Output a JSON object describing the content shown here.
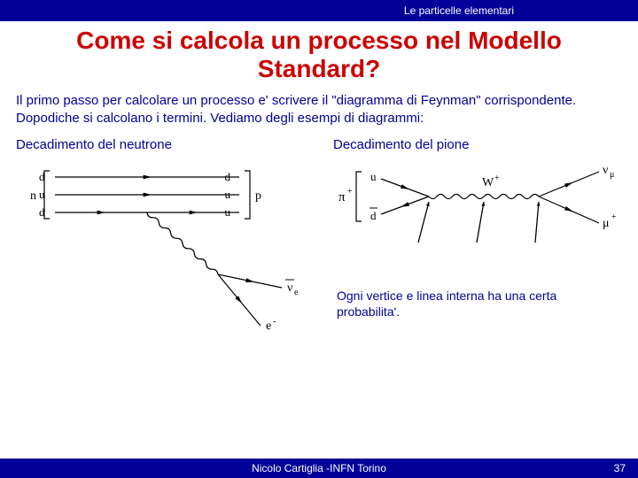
{
  "header": {
    "topic": "Le particelle elementari"
  },
  "title": "Come si calcola un processo nel Modello Standard?",
  "intro": "Il primo passo per calcolare un processo e' scrivere il \"diagramma di Feynman\" corrispondente. Dopodiche si calcolano i termini. Vediamo degli esempi di diagrammi:",
  "left": {
    "title": "Decadimento del neutrone",
    "diagram": {
      "type": "feynman",
      "left_bracket_label": "n",
      "right_bracket_label": "p",
      "in_quarks": [
        "d",
        "u",
        "d"
      ],
      "out_quarks": [
        "d",
        "u",
        "u"
      ],
      "products": [
        {
          "label": "ν",
          "sub": "e",
          "overline": true
        },
        {
          "label": "e",
          "sup": "-"
        }
      ],
      "line_color": "#000000",
      "text_color": "#000000",
      "arrow_size": 5
    }
  },
  "right": {
    "title": "Decadimento del pione",
    "diagram": {
      "type": "feynman",
      "left_bracket_label": "π",
      "left_bracket_sup": "+",
      "in_quarks": [
        {
          "label": "u"
        },
        {
          "label": "d",
          "overline": true
        }
      ],
      "boson_label": "W",
      "boson_sup": "+",
      "out_particles": [
        {
          "label": "ν",
          "sub": "μ"
        },
        {
          "label": "μ",
          "sup": "+"
        }
      ],
      "pointer_arrows": 3,
      "line_color": "#000000"
    },
    "caption": "Ogni vertice e linea interna ha una certa probabilita'."
  },
  "footer": {
    "credit": "Nicolo Cartiglia -INFN Torino",
    "page": "37"
  },
  "colors": {
    "brand_blue": "#000099",
    "title_red": "#cc0000",
    "white": "#ffffff",
    "black": "#000000"
  }
}
